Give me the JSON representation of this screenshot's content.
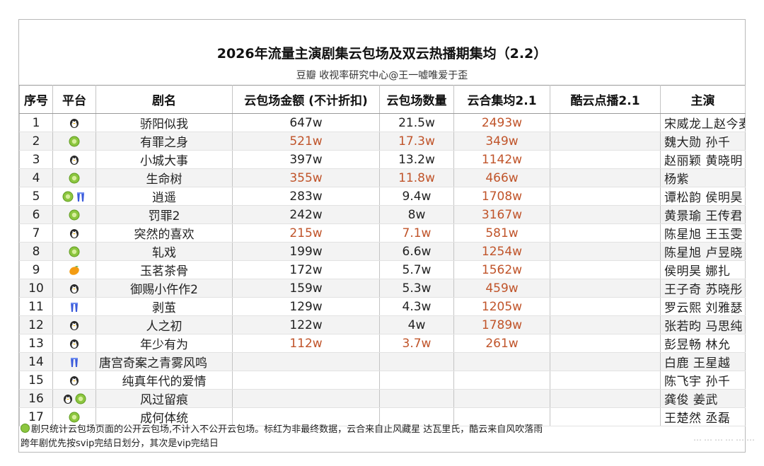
{
  "title": "2026年流量主演剧集云包场及双云热播期集均（2.2）",
  "subtitle": "豆瓣 收视率研究中心@王一嘘唯爱于歪",
  "headers": [
    "序号",
    "平台",
    "剧名",
    "云包场金额 (不计折扣)",
    "云包场数量",
    "云合集均2.1",
    "酷云点播2.1",
    "主演"
  ],
  "colors": {
    "red_value": "#c0542a",
    "iqiyi": "#8cc63f",
    "tencent": "#2a2a2a",
    "youku": "#3b5bdb",
    "mango": "#f39c12"
  },
  "rows": [
    {
      "no": "1",
      "platforms": [
        "tencent"
      ],
      "name": "骄阳似我",
      "amount": "647w",
      "amount_red": false,
      "count": "21.5w",
      "count_red": false,
      "yunhe": "2493w",
      "kuyun": "",
      "cast": "宋威龙丄赵今麦"
    },
    {
      "no": "2",
      "platforms": [
        "iqiyi"
      ],
      "name": "有罪之身",
      "amount": "521w",
      "amount_red": true,
      "count": "17.3w",
      "count_red": true,
      "yunhe": "349w",
      "kuyun": "",
      "cast": "魏大勋 孙千"
    },
    {
      "no": "3",
      "platforms": [
        "tencent"
      ],
      "name": "小城大事",
      "amount": "397w",
      "amount_red": false,
      "count": "13.2w",
      "count_red": false,
      "yunhe": "1142w",
      "kuyun": "",
      "cast": "赵丽颖 黄晓明"
    },
    {
      "no": "4",
      "platforms": [
        "iqiyi"
      ],
      "name": "生命树",
      "amount": "355w",
      "amount_red": true,
      "count": "11.8w",
      "count_red": true,
      "yunhe": "466w",
      "kuyun": "",
      "cast": "杨紫"
    },
    {
      "no": "5",
      "platforms": [
        "iqiyi",
        "youku"
      ],
      "name": "逍遥",
      "amount": "283w",
      "amount_red": false,
      "count": "9.4w",
      "count_red": false,
      "yunhe": "1708w",
      "kuyun": "",
      "cast": "谭松韵 侯明昊"
    },
    {
      "no": "6",
      "platforms": [
        "iqiyi"
      ],
      "name": "罚罪2",
      "amount": "242w",
      "amount_red": false,
      "count": "8w",
      "count_red": false,
      "yunhe": "3167w",
      "kuyun": "",
      "cast": "黄景瑜 王传君"
    },
    {
      "no": "7",
      "platforms": [
        "tencent"
      ],
      "name": "突然的喜欢",
      "amount": "215w",
      "amount_red": true,
      "count": "7.1w",
      "count_red": true,
      "yunhe": "581w",
      "kuyun": "",
      "cast": "陈星旭 王玉雯"
    },
    {
      "no": "8",
      "platforms": [
        "iqiyi"
      ],
      "name": "轧戏",
      "amount": "199w",
      "amount_red": false,
      "count": "6.6w",
      "count_red": false,
      "yunhe": "1254w",
      "kuyun": "",
      "cast": "陈星旭 卢昱晓"
    },
    {
      "no": "9",
      "platforms": [
        "mango"
      ],
      "name": "玉茗茶骨",
      "amount": "172w",
      "amount_red": false,
      "count": "5.7w",
      "count_red": false,
      "yunhe": "1562w",
      "kuyun": "",
      "cast": "侯明昊 娜扎"
    },
    {
      "no": "10",
      "platforms": [
        "tencent"
      ],
      "name": "御赐小仵作2",
      "amount": "159w",
      "amount_red": false,
      "count": "5.3w",
      "count_red": false,
      "yunhe": "459w",
      "kuyun": "",
      "cast": "王子奇 苏晓彤"
    },
    {
      "no": "11",
      "platforms": [
        "youku"
      ],
      "name": "剥茧",
      "amount": "129w",
      "amount_red": false,
      "count": "4.3w",
      "count_red": false,
      "yunhe": "1205w",
      "kuyun": "",
      "cast": "罗云熙 刘雅瑟"
    },
    {
      "no": "12",
      "platforms": [
        "tencent"
      ],
      "name": "人之初",
      "amount": "122w",
      "amount_red": false,
      "count": "4w",
      "count_red": false,
      "yunhe": "1789w",
      "kuyun": "",
      "cast": "张若昀 马思纯"
    },
    {
      "no": "13",
      "platforms": [
        "tencent"
      ],
      "name": "年少有为",
      "amount": "112w",
      "amount_red": true,
      "count": "3.7w",
      "count_red": true,
      "yunhe": "261w",
      "kuyun": "",
      "cast": "彭昱畅 林允"
    },
    {
      "no": "14",
      "platforms": [
        "youku"
      ],
      "name": "唐宫奇案之青雾风鸣",
      "amount": "",
      "amount_red": false,
      "count": "",
      "count_red": false,
      "yunhe": "",
      "kuyun": "",
      "cast": "白鹿 王星越",
      "name_left": true
    },
    {
      "no": "15",
      "platforms": [
        "tencent"
      ],
      "name": "纯真年代的爱情",
      "amount": "",
      "amount_red": false,
      "count": "",
      "count_red": false,
      "yunhe": "",
      "kuyun": "",
      "cast": "陈飞宇 孙千"
    },
    {
      "no": "16",
      "platforms": [
        "tencent",
        "iqiyi"
      ],
      "name": "风过留痕",
      "amount": "",
      "amount_red": false,
      "count": "",
      "count_red": false,
      "yunhe": "",
      "kuyun": "",
      "cast": "龚俊 姜武"
    },
    {
      "no": "17",
      "platforms": [
        "iqiyi"
      ],
      "name": "成何体统",
      "amount": "",
      "amount_red": false,
      "count": "",
      "count_red": false,
      "yunhe": "",
      "kuyun": "",
      "cast": "王楚然 丞磊"
    }
  ],
  "footnote_line1": "剧只统计云包场页面的公开云包场,不计入不公开云包场。标红为非最终数据，云合来自止风藏星 达瓦里氏，酷云来自风吹落雨",
  "footnote_line2": "跨年剧优先按svip完结日划分，其次是vip完结日",
  "watermark": "………………"
}
